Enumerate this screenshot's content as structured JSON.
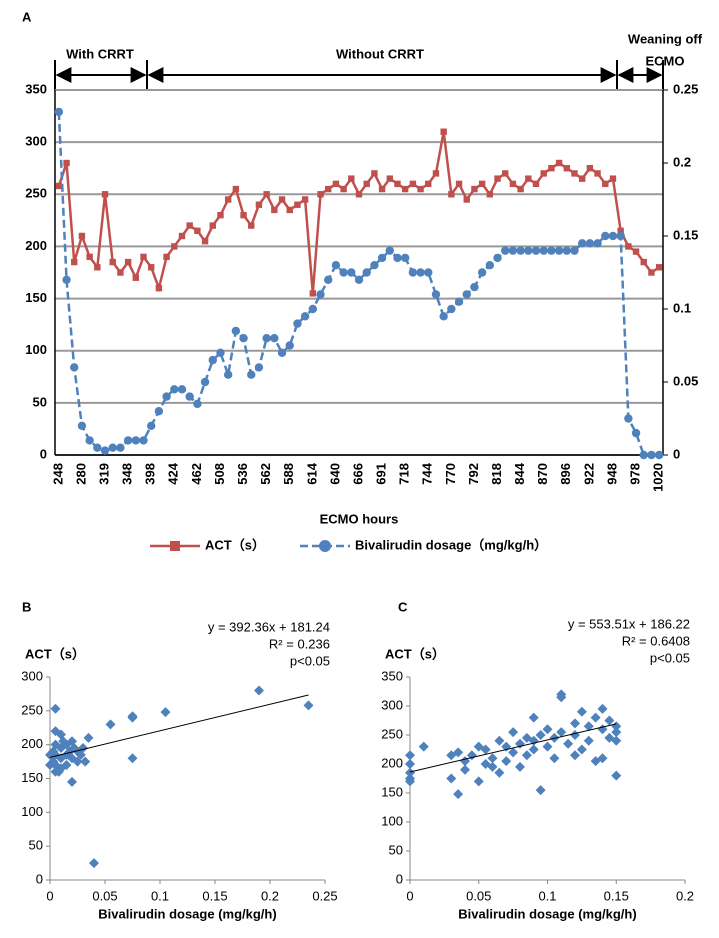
{
  "chart_data": [
    {
      "type": "line",
      "panel_label": "A",
      "xlabel": "ECMO hours",
      "grid": true,
      "annotations": [
        "With CRRT",
        "Without CRRT",
        "Weaning off",
        "ECMO"
      ],
      "categories": [
        "248",
        null,
        null,
        "280",
        null,
        null,
        "319",
        null,
        null,
        "348",
        null,
        null,
        "398",
        null,
        null,
        "424",
        null,
        null,
        "462",
        null,
        null,
        "508",
        null,
        null,
        "536",
        null,
        null,
        "562",
        null,
        null,
        "588",
        null,
        null,
        "614",
        null,
        null,
        "640",
        null,
        null,
        "666",
        null,
        null,
        "691",
        null,
        null,
        "718",
        null,
        null,
        "744",
        null,
        null,
        "770",
        null,
        null,
        "792",
        null,
        null,
        "818",
        null,
        null,
        "844",
        null,
        null,
        "870",
        null,
        null,
        "896",
        null,
        null,
        "922",
        null,
        null,
        "948",
        null,
        null,
        "978",
        null,
        null,
        "1020"
      ],
      "ylim": [
        0,
        350
      ],
      "yticks": [
        0,
        50,
        100,
        150,
        200,
        250,
        300,
        350
      ],
      "y2lim": [
        0,
        0.25
      ],
      "y2ticks": [
        0,
        0.05,
        0.1,
        0.15,
        0.2,
        0.25
      ],
      "series": [
        {
          "name": "ACT（s）",
          "color": "#c0504d",
          "marker": "square",
          "dashed": false,
          "values": [
            258,
            280,
            185,
            210,
            190,
            180,
            250,
            185,
            175,
            185,
            170,
            190,
            180,
            160,
            190,
            200,
            210,
            220,
            215,
            205,
            220,
            230,
            245,
            255,
            230,
            220,
            240,
            250,
            235,
            245,
            235,
            240,
            245,
            155,
            250,
            255,
            260,
            255,
            265,
            250,
            260,
            270,
            255,
            265,
            260,
            255,
            260,
            255,
            260,
            270,
            310,
            250,
            260,
            245,
            255,
            260,
            250,
            265,
            270,
            260,
            255,
            265,
            260,
            270,
            275,
            280,
            275,
            270,
            265,
            275,
            270,
            260,
            265,
            215,
            200,
            195,
            185,
            175,
            180
          ]
        },
        {
          "name": "Bivalirudin dosage（mg/kg/h）",
          "color": "#4f81bd",
          "marker": "circle",
          "dashed": true,
          "axis": "y2",
          "values": [
            0.235,
            0.12,
            0.06,
            0.02,
            0.01,
            0.005,
            0.003,
            0.005,
            0.005,
            0.01,
            0.01,
            0.01,
            0.02,
            0.03,
            0.04,
            0.045,
            0.045,
            0.04,
            0.035,
            0.05,
            0.065,
            0.07,
            0.055,
            0.085,
            0.08,
            0.055,
            0.06,
            0.08,
            0.08,
            0.07,
            0.075,
            0.09,
            0.095,
            0.1,
            0.11,
            0.12,
            0.13,
            0.125,
            0.125,
            0.12,
            0.125,
            0.13,
            0.135,
            0.14,
            0.135,
            0.135,
            0.125,
            0.125,
            0.125,
            0.11,
            0.095,
            0.1,
            0.105,
            0.11,
            0.115,
            0.125,
            0.13,
            0.135,
            0.14,
            0.14,
            0.14,
            0.14,
            0.14,
            0.14,
            0.14,
            0.14,
            0.14,
            0.14,
            0.145,
            0.145,
            0.145,
            0.15,
            0.15,
            0.15,
            0.025,
            0.015,
            0,
            0,
            0
          ]
        }
      ]
    },
    {
      "type": "scatter",
      "panel_label": "B",
      "ylabel": "ACT（s）",
      "xlabel": "Bivalirudin dosage (mg/kg/h)",
      "color": "#4f81bd",
      "annotations": [
        "y = 392.36x + 181.24",
        "R² = 0.236",
        "p<0.05"
      ],
      "trendline": {
        "slope": 392.36,
        "intercept": 181.24
      },
      "xlim": [
        0,
        0.25
      ],
      "xticks": [
        0,
        0.05,
        0.1,
        0.15,
        0.2,
        0.25
      ],
      "ylim": [
        0,
        300
      ],
      "yticks": [
        0,
        50,
        100,
        150,
        200,
        250,
        300
      ],
      "x": [
        0.235,
        0.19,
        0.105,
        0.075,
        0.075,
        0.075,
        0.055,
        0.04,
        0.035,
        0.03,
        0.025,
        0.025,
        0.02,
        0.02,
        0.02,
        0.015,
        0.015,
        0.015,
        0.01,
        0.01,
        0.01,
        0.01,
        0.005,
        0.005,
        0.005,
        0.005,
        0.005,
        0.005,
        0.003,
        0.003,
        0,
        0,
        0.012,
        0.008,
        0.018,
        0.028,
        0.032,
        0.022
      ],
      "values": [
        258,
        280,
        248,
        242,
        240,
        180,
        230,
        25,
        210,
        195,
        190,
        175,
        205,
        180,
        145,
        200,
        185,
        170,
        215,
        195,
        180,
        165,
        253,
        220,
        200,
        185,
        170,
        160,
        190,
        175,
        185,
        170,
        205,
        160,
        190,
        185,
        175,
        195
      ]
    },
    {
      "type": "scatter",
      "panel_label": "C",
      "ylabel": "ACT（s）",
      "xlabel": "Bivalirudin dosage (mg/kg/h)",
      "color": "#4f81bd",
      "annotations": [
        "y = 553.51x + 186.22",
        "R² = 0.6408",
        "p<0.05"
      ],
      "trendline": {
        "slope": 553.51,
        "intercept": 186.22
      },
      "xlim": [
        0,
        0.2
      ],
      "xticks": [
        0,
        0.05,
        0.1,
        0.15,
        0.2
      ],
      "ylim": [
        0,
        350
      ],
      "yticks": [
        0,
        50,
        100,
        150,
        200,
        250,
        300,
        350
      ],
      "x": [
        0,
        0,
        0,
        0,
        0,
        0.01,
        0.03,
        0.03,
        0.035,
        0.035,
        0.04,
        0.04,
        0.045,
        0.05,
        0.05,
        0.055,
        0.055,
        0.06,
        0.065,
        0.065,
        0.07,
        0.07,
        0.075,
        0.075,
        0.08,
        0.08,
        0.085,
        0.085,
        0.09,
        0.09,
        0.095,
        0.095,
        0.1,
        0.1,
        0.105,
        0.105,
        0.11,
        0.11,
        0.11,
        0.115,
        0.12,
        0.12,
        0.125,
        0.125,
        0.13,
        0.13,
        0.135,
        0.135,
        0.14,
        0.14,
        0.14,
        0.145,
        0.145,
        0.15,
        0.15,
        0.15,
        0.15,
        0.12,
        0.06,
        0.09
      ],
      "values": [
        215,
        200,
        185,
        175,
        170,
        230,
        215,
        175,
        148,
        220,
        190,
        205,
        215,
        230,
        170,
        200,
        225,
        210,
        185,
        240,
        230,
        205,
        220,
        255,
        235,
        195,
        245,
        215,
        280,
        240,
        155,
        250,
        230,
        260,
        210,
        245,
        320,
        315,
        255,
        235,
        270,
        250,
        225,
        290,
        265,
        240,
        205,
        280,
        260,
        295,
        210,
        245,
        275,
        255,
        265,
        180,
        240,
        215,
        195,
        225
      ]
    }
  ]
}
